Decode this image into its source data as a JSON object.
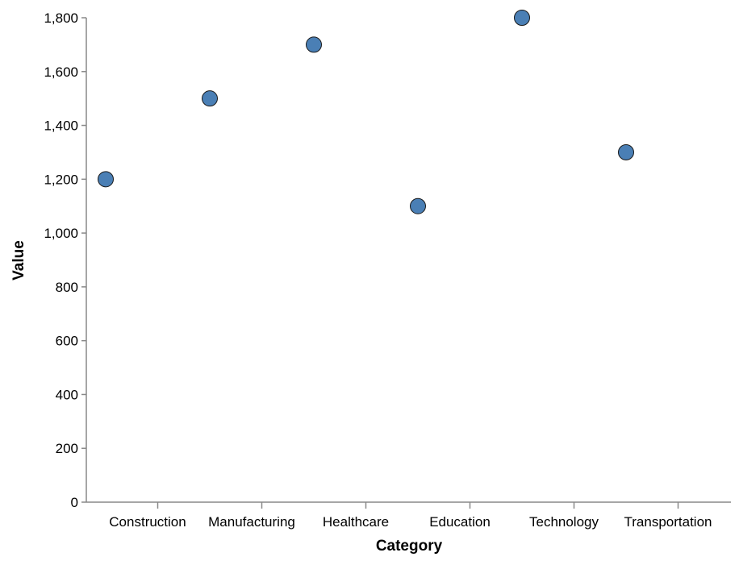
{
  "chart_data": {
    "type": "scatter",
    "categories": [
      "Construction",
      "Manufacturing",
      "Healthcare",
      "Education",
      "Technology",
      "Transportation"
    ],
    "values": [
      1200,
      1500,
      1700,
      1100,
      1800,
      1300
    ],
    "xlabel": "Category",
    "ylabel": "Value",
    "ylim": [
      0,
      1800
    ],
    "yticks": [
      0,
      200,
      400,
      600,
      800,
      1000,
      1200,
      1400,
      1600,
      1800
    ],
    "ytick_labels": [
      "0",
      "200",
      "400",
      "600",
      "800",
      "1,000",
      "1,200",
      "1,400",
      "1,600",
      "1,800"
    ],
    "point_color": "#4a7fb5",
    "grid": false
  }
}
